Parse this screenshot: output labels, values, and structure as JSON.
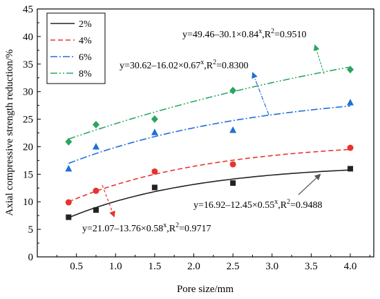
{
  "chart_data": {
    "type": "scatter",
    "title": "",
    "xlabel": "Pore size/mm",
    "ylabel": "Axial compressive strength reduction/%",
    "xlim": [
      0,
      4.3
    ],
    "ylim": [
      0,
      45
    ],
    "x_ticks": [
      0.5,
      1.0,
      1.5,
      2.0,
      2.5,
      3.0,
      3.5,
      4.0
    ],
    "x_tick_labels": [
      "0.5",
      "1.0",
      "1.5",
      "2.0",
      "2.5",
      "3.0",
      "3.5",
      "4.0"
    ],
    "y_ticks": [
      0,
      5,
      10,
      15,
      20,
      25,
      30,
      35,
      40,
      45
    ],
    "y_tick_labels": [
      "0",
      "5",
      "10",
      "15",
      "20",
      "25",
      "30",
      "35",
      "40",
      "45"
    ],
    "grid": false,
    "legend_position": "top-left",
    "series": [
      {
        "name": "2%",
        "color": "#222222",
        "line_style": "solid",
        "marker": "square",
        "points": [
          [
            0.4,
            7.2
          ],
          [
            0.75,
            8.5
          ],
          [
            1.5,
            12.6
          ],
          [
            2.5,
            13.4
          ],
          [
            4.0,
            16.0
          ]
        ],
        "fit": {
          "a": 16.92,
          "b": 12.45,
          "c": 0.55,
          "r2": 0.9488
        },
        "equation": {
          "prefix": "y=16.92–12.45×0.55",
          "exp": "x",
          "mid": ",R",
          "exp2": "2",
          "suffix": "=0.9488"
        }
      },
      {
        "name": "4%",
        "color": "#e8322e",
        "line_style": "dashed",
        "marker": "circle",
        "points": [
          [
            0.4,
            9.9
          ],
          [
            0.75,
            12.0
          ],
          [
            1.5,
            15.5
          ],
          [
            2.5,
            16.8
          ],
          [
            4.0,
            19.8
          ]
        ],
        "fit": {
          "a": 21.07,
          "b": 13.76,
          "c": 0.58,
          "r2": 0.9717
        },
        "equation": {
          "prefix": "y=21.07–13.76×0.58",
          "exp": "x",
          "mid": ",R",
          "exp2": "2",
          "suffix": "=0.9717"
        }
      },
      {
        "name": "6%",
        "color": "#1f6fd6",
        "line_style": "dashdot",
        "marker": "triangle",
        "points": [
          [
            0.4,
            16.0
          ],
          [
            0.75,
            20.0
          ],
          [
            1.5,
            22.6
          ],
          [
            2.5,
            23.0
          ],
          [
            4.0,
            28.0
          ]
        ],
        "fit": {
          "a": 30.62,
          "b": 16.02,
          "c": 0.67,
          "r2": 0.83
        },
        "equation": {
          "prefix": "y=30.62–16.02×0.67",
          "exp": "x",
          "mid": ",R",
          "exp2": "2",
          "suffix": "=0.8300"
        }
      },
      {
        "name": "8%",
        "color": "#2aa562",
        "line_style": "dashdotdot",
        "marker": "diamond",
        "points": [
          [
            0.4,
            20.9
          ],
          [
            0.75,
            24.0
          ],
          [
            1.5,
            25.0
          ],
          [
            2.5,
            30.2
          ],
          [
            4.0,
            34.0
          ]
        ],
        "fit": {
          "a": 49.46,
          "b": 30.1,
          "c": 0.84,
          "r2": 0.951
        },
        "equation": {
          "prefix": "y=49.46–30.1×0.84",
          "exp": "x",
          "mid": ",R",
          "exp2": "2",
          "suffix": "=0.9510"
        }
      }
    ]
  }
}
